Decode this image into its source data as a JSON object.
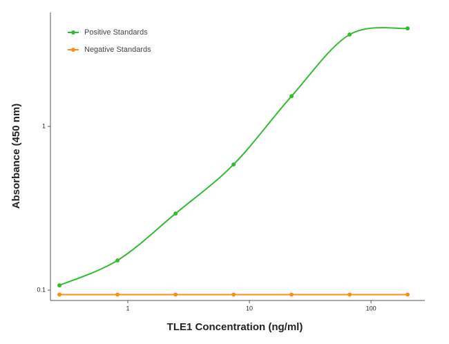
{
  "chart_data": {
    "type": "scatter",
    "xlabel": "TLE1 Concentration (ng/ml)",
    "ylabel": "Absorbance (450 nm)",
    "xscale": "log",
    "yscale": "log",
    "xlim": [
      0.231,
      277
    ],
    "ylim": [
      0.0865,
      4.97
    ],
    "xticks": [
      1,
      10,
      100
    ],
    "yticks": [
      0.1,
      1
    ],
    "legend": "upper left",
    "x": [
      0.274,
      0.823,
      2.47,
      7.41,
      22.2,
      66.7,
      200
    ],
    "series": [
      {
        "name": "Positive Standards",
        "color": "#33bb33",
        "values": [
          0.107,
          0.152,
          0.294,
          0.586,
          1.53,
          3.64,
          3.97
        ]
      },
      {
        "name": "Negative Standards",
        "color": "#ff8c1a",
        "values": [
          0.094,
          0.094,
          0.094,
          0.094,
          0.094,
          0.094,
          0.094
        ]
      }
    ]
  }
}
